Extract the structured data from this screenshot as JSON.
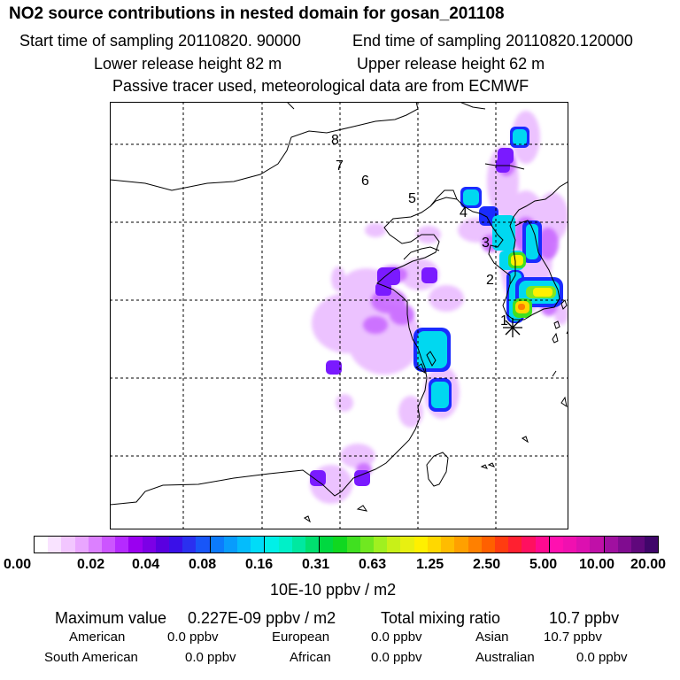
{
  "header": {
    "title": "NO2 source contributions in nested domain for gosan_201108",
    "start_label": "Start time of sampling 20110820. 90000",
    "end_label": "End time of sampling 20110820.120000",
    "lower_label": "Lower release height   82 m",
    "upper_label": "Upper release height   62 m",
    "tracer_label": "Passive tracer used, meteorological data are from ECMWF"
  },
  "map": {
    "trajectory_points": [
      "1",
      "2",
      "3",
      "4",
      "5",
      "6",
      "7",
      "8"
    ],
    "release_marker": "asterisk-icon"
  },
  "colorbar": {
    "tick_labels": [
      "0.00",
      "0.02",
      "0.04",
      "0.08",
      "0.16",
      "0.31",
      "0.63",
      "1.25",
      "2.50",
      "5.00",
      "10.00",
      "20.00"
    ],
    "units": "10E-10 ppbv / m2",
    "colors": [
      "#ffffff",
      "#f9e3ff",
      "#f2c6ff",
      "#e9a6ff",
      "#dc80ff",
      "#cc55ff",
      "#b52aff",
      "#9a00f0",
      "#7c00e6",
      "#5a00e0",
      "#3a10e8",
      "#2a30f0",
      "#1856f8",
      "#0c7bfc",
      "#089cfc",
      "#04bcfc",
      "#00dcf8",
      "#00f0e8",
      "#00f0c8",
      "#00e8a0",
      "#00e070",
      "#00d840",
      "#10d820",
      "#40e020",
      "#70e820",
      "#a0f020",
      "#c8f018",
      "#e8f010",
      "#fff000",
      "#ffd800",
      "#ffbc00",
      "#ffa000",
      "#ff8000",
      "#ff6000",
      "#ff3c10",
      "#ff2030",
      "#ff1060",
      "#ff0a90",
      "#ff10b0",
      "#f010b0",
      "#dc10b0",
      "#c010a8",
      "#a010a0",
      "#800c90",
      "#60087c",
      "#40066a"
    ]
  },
  "stats": {
    "max_label": "Maximum value",
    "max_value": "0.227E-09 ppbv / m2",
    "total_label": "Total mixing ratio",
    "total_value": "10.7 ppbv",
    "american_label": "American",
    "american_value": "0.0 ppbv",
    "european_label": "European",
    "european_value": "0.0 ppbv",
    "asian_label": "Asian",
    "asian_value": "10.7 ppbv",
    "south_american_label": "South American",
    "south_american_value": "0.0 ppbv",
    "african_label": "African",
    "african_value": "0.0 ppbv",
    "australian_label": "Australian",
    "australian_value": "0.0 ppbv"
  }
}
